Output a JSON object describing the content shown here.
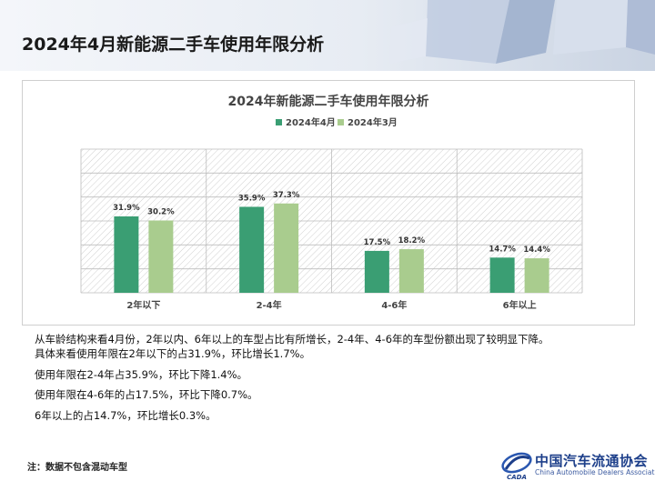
{
  "page": {
    "title": "2024年4月新能源二手车使用年限分析",
    "footnote": "注：数据不包含混动车型"
  },
  "notes": [
    "从车龄结构来看4月份，2年以内、6年以上的车型占比有所增长，2-4年、4-6年的车型份额出现了较明显下降。",
    "具体来看使用年限在2年以下的占31.9%，环比增长1.7%。",
    "使用年限在2-4年占35.9%，环比下降1.4%。",
    "使用年限在4-6年的占17.5%，环比下降0.7%。",
    "6年以上的占14.7%，环比增长0.3%。"
  ],
  "logo": {
    "name_cn": "中国汽车流通协会",
    "name_en": "China Automobile Dealers Association",
    "mark_text": "CADA"
  },
  "chart_data": {
    "type": "bar",
    "title": "2024年新能源二手车使用年限分析",
    "categories": [
      "2年以下",
      "2-4年",
      "4-6年",
      "6年以上"
    ],
    "series": [
      {
        "name": "2024年4月",
        "values": [
          31.9,
          35.9,
          17.5,
          14.7
        ],
        "color": "#3a9e73"
      },
      {
        "name": "2024年3月",
        "values": [
          30.2,
          37.3,
          18.2,
          14.4
        ],
        "color": "#a9cc8e"
      }
    ],
    "value_suffix": "%",
    "ylim": [
      0,
      60
    ],
    "grid": true,
    "legend_position": "top"
  }
}
